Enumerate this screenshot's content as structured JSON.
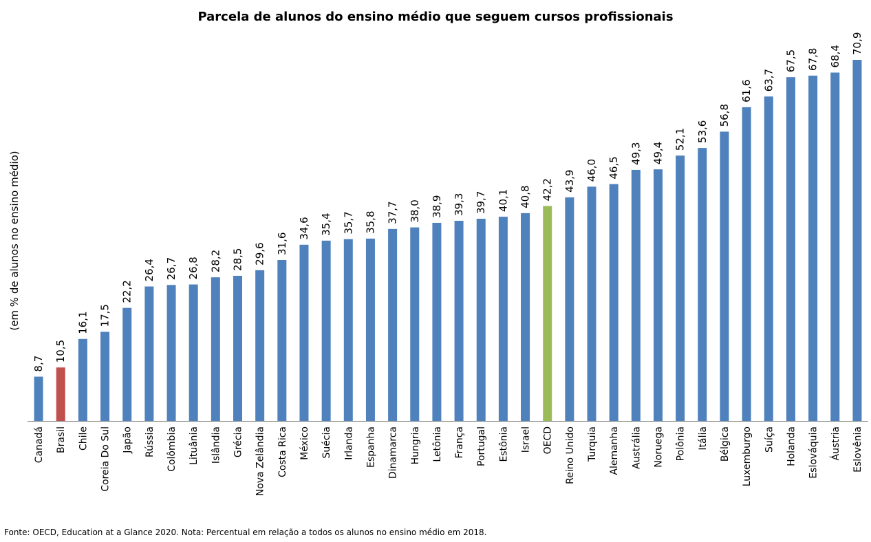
{
  "chart_data": {
    "type": "bar",
    "title": "Parcela de alunos do ensino médio que seguem cursos profissionais",
    "ylabel": "(em % de alunos no ensino médio)",
    "xlabel": "",
    "ylim": [
      0,
      72
    ],
    "grid": false,
    "legend": "none",
    "categories": [
      "Canadá",
      "Brasil",
      "Chile",
      "Coreia Do Sul",
      "Japão",
      "Rússia",
      "Colômbia",
      "Lituânia",
      "Islândia",
      "Grécia",
      "Nova Zelândia",
      "Costa Rica",
      "México",
      "Suécia",
      "Irlanda",
      "Espanha",
      "Dinamarca",
      "Hungria",
      "Letônia",
      "França",
      "Portugal",
      "Estônia",
      "Israel",
      "OECD",
      "Reino Unido",
      "Turquia",
      "Alemanha",
      "Austrália",
      "Noruega",
      "Polônia",
      "Itália",
      "Bélgica",
      "Luxemburgo",
      "Suíça",
      "Holanda",
      "Eslováquia",
      "Áustria",
      "Eslovênia"
    ],
    "values": [
      8.7,
      10.5,
      16.1,
      17.5,
      22.2,
      26.4,
      26.7,
      26.8,
      28.2,
      28.5,
      29.6,
      31.6,
      34.6,
      35.4,
      35.7,
      35.8,
      37.7,
      38.0,
      38.9,
      39.3,
      39.7,
      40.1,
      40.8,
      42.2,
      43.9,
      46.0,
      46.5,
      49.3,
      49.4,
      52.1,
      53.6,
      56.8,
      61.6,
      63.7,
      67.5,
      67.8,
      68.4,
      70.9
    ],
    "value_labels": [
      "8,7",
      "10,5",
      "16,1",
      "17,5",
      "22,2",
      "26,4",
      "26,7",
      "26,8",
      "28,2",
      "28,5",
      "29,6",
      "31,6",
      "34,6",
      "35,4",
      "35,7",
      "35,8",
      "37,7",
      "38,0",
      "38,9",
      "39,3",
      "39,7",
      "40,1",
      "40,8",
      "42,2",
      "43,9",
      "46,0",
      "46,5",
      "49,3",
      "49,4",
      "52,1",
      "53,6",
      "56,8",
      "61,6",
      "63,7",
      "67,5",
      "67,8",
      "68,4",
      "70,9"
    ],
    "colors": {
      "default": "#4F81BD",
      "Brasil": "#C0504D",
      "OECD": "#9BBB59"
    }
  },
  "footnote": "Fonte: OECD, Education at a Glance 2020. Nota: Percentual em relação a todos os alunos no ensino médio em 2018."
}
